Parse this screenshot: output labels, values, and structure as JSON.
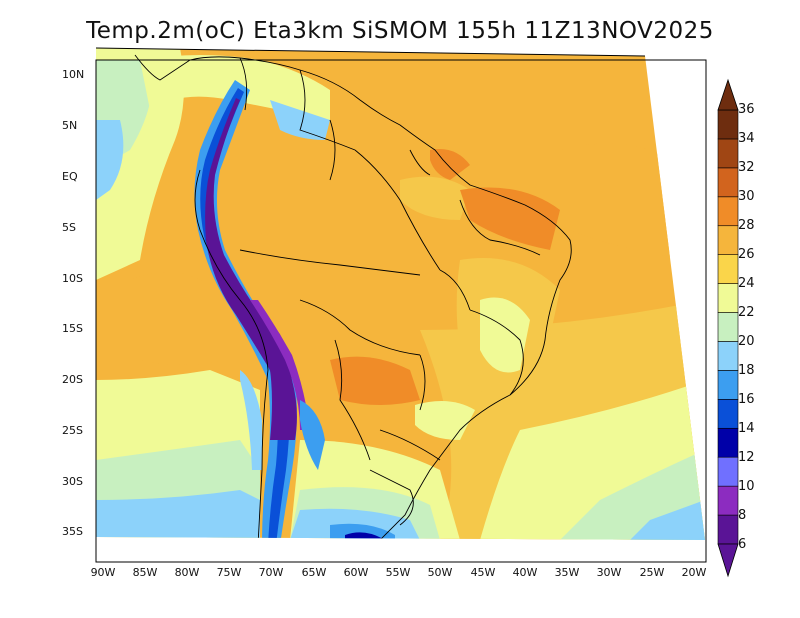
{
  "title": "Temp.2m(oC) Eta3km SiSMOM 155h 11Z13NOV2025",
  "map": {
    "lat_labels": [
      "10N",
      "5N",
      "EQ",
      "5S",
      "10S",
      "15S",
      "20S",
      "25S",
      "30S",
      "35S"
    ],
    "lon_labels": [
      "90W",
      "85W",
      "80W",
      "75W",
      "70W",
      "65W",
      "60W",
      "55W",
      "50W",
      "45W",
      "40W",
      "35W",
      "30W",
      "25W",
      "20W"
    ],
    "variable": "2 m temperature",
    "units": "oC"
  },
  "colorbar": {
    "levels": [
      "36",
      "34",
      "32",
      "30",
      "28",
      "26",
      "24",
      "22",
      "20",
      "18",
      "16",
      "14",
      "12",
      "10",
      "8",
      "6"
    ],
    "colors_low_to_high": [
      "#5a1496",
      "#8c2cc0",
      "#7070ff",
      "#0000a8",
      "#0a50d8",
      "#3c9ef0",
      "#8cd2fa",
      "#c8f0c0",
      "#f0fa96",
      "#fad54a",
      "#f5b53c",
      "#f08c28",
      "#d2641e",
      "#a04614",
      "#6e2d0f"
    ]
  }
}
